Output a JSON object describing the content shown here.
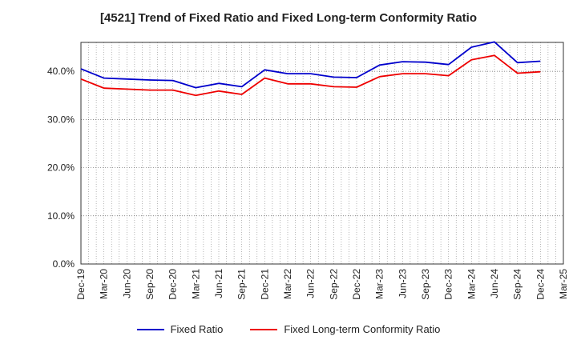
{
  "title": "[4521]  Trend of Fixed Ratio and Fixed Long-term Conformity Ratio",
  "chart_data": {
    "type": "line",
    "title": "[4521]  Trend of Fixed Ratio and Fixed Long-term Conformity Ratio",
    "xlabel": "",
    "ylabel": "",
    "ylim": [
      0,
      46
    ],
    "yticks": [
      "0.0%",
      "10.0%",
      "20.0%",
      "30.0%",
      "40.0%"
    ],
    "ytick_values": [
      0,
      10,
      20,
      30,
      40
    ],
    "grid": true,
    "legend_position": "bottom",
    "x_tick_labels": [
      "Dec-19",
      "Mar-20",
      "Jun-20",
      "Sep-20",
      "Dec-20",
      "Mar-21",
      "Jun-21",
      "Sep-21",
      "Dec-21",
      "Mar-22",
      "Jun-22",
      "Sep-22",
      "Dec-22",
      "Mar-23",
      "Jun-23",
      "Sep-23",
      "Dec-23",
      "Mar-24",
      "Jun-24",
      "Sep-24",
      "Dec-24",
      "Mar-25"
    ],
    "x": [
      "Dec-19",
      "Mar-20",
      "Jun-20",
      "Sep-20",
      "Dec-20",
      "Mar-21",
      "Jun-21",
      "Sep-21",
      "Dec-21",
      "Mar-22",
      "Jun-22",
      "Sep-22",
      "Dec-22",
      "Mar-23",
      "Jun-23",
      "Sep-23",
      "Dec-23",
      "Mar-24",
      "Jun-24",
      "Sep-24",
      "Dec-24"
    ],
    "series": [
      {
        "name": "Fixed Ratio",
        "color": "#0000cc",
        "values": [
          40.5,
          38.6,
          38.4,
          38.2,
          38.1,
          36.6,
          37.5,
          36.8,
          40.3,
          39.5,
          39.5,
          38.8,
          38.7,
          41.3,
          42.0,
          41.9,
          41.4,
          45.0,
          46.1,
          41.8,
          42.1
        ]
      },
      {
        "name": "Fixed Long-term Conformity Ratio",
        "color": "#ee0000",
        "values": [
          38.4,
          36.5,
          36.3,
          36.1,
          36.1,
          35.0,
          35.9,
          35.2,
          38.6,
          37.4,
          37.4,
          36.8,
          36.7,
          38.9,
          39.5,
          39.5,
          39.1,
          42.4,
          43.3,
          39.6,
          39.9
        ]
      }
    ]
  }
}
